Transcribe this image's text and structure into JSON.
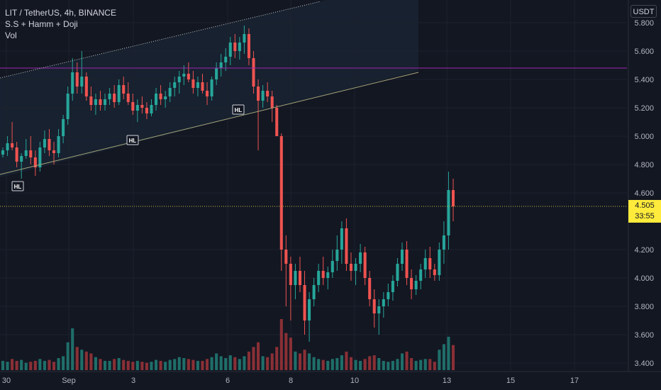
{
  "header": {
    "symbol_line": "LIT / TetherUS, 4h, BINANCE",
    "indicator_1": "S.S + Hamm + Doji",
    "indicator_2": "Vol"
  },
  "price_axis": {
    "unit": "USDT",
    "last_price": "4.505",
    "countdown": "33:55"
  },
  "annotations": [
    "HL",
    "HL",
    "HL"
  ],
  "colors": {
    "background": "#131722",
    "bull": "#26a69a",
    "bear": "#ef5350",
    "bull_volume": "#1f6f6a",
    "bear_volume": "#8a3036",
    "resistance_line": "#9c27b0",
    "trend_line": "#a5a57a",
    "last_price_tag": "#ffeb3b"
  },
  "chart_data": {
    "type": "candlestick",
    "symbol": "LIT / TetherUS",
    "interval": "4h",
    "exchange": "BINANCE",
    "ylim": [
      3.35,
      5.95
    ],
    "y_ticks": [
      "5.800",
      "5.600",
      "5.400",
      "5.200",
      "5.000",
      "4.800",
      "4.600",
      "4.200",
      "4.000",
      "3.800",
      "3.600",
      "3.400"
    ],
    "x_ticks": [
      "30",
      "Sep",
      "3",
      "6",
      "8",
      "10",
      "13",
      "15",
      "17"
    ],
    "horizontal_line": 5.48,
    "last_price": 4.505,
    "candles": [
      [
        4.87,
        4.92,
        4.85,
        4.9,
        0.1
      ],
      [
        4.9,
        5.0,
        4.86,
        4.95,
        0.09
      ],
      [
        4.95,
        5.1,
        4.9,
        4.92,
        0.12
      ],
      [
        4.92,
        4.96,
        4.78,
        4.82,
        0.1
      ],
      [
        4.82,
        4.88,
        4.7,
        4.86,
        0.11
      ],
      [
        4.86,
        4.98,
        4.84,
        4.9,
        0.08
      ],
      [
        4.9,
        5.0,
        4.8,
        4.85,
        0.09
      ],
      [
        4.85,
        4.9,
        4.72,
        4.78,
        0.1
      ],
      [
        4.78,
        4.96,
        4.75,
        4.92,
        0.12
      ],
      [
        4.92,
        5.04,
        4.88,
        4.98,
        0.1
      ],
      [
        4.98,
        5.05,
        4.86,
        4.9,
        0.11
      ],
      [
        4.9,
        4.96,
        4.8,
        4.88,
        0.09
      ],
      [
        4.88,
        5.05,
        4.85,
        5.0,
        0.13
      ],
      [
        5.0,
        5.15,
        4.95,
        5.12,
        0.15
      ],
      [
        5.12,
        5.35,
        5.08,
        5.3,
        0.3
      ],
      [
        5.3,
        5.55,
        5.25,
        5.45,
        0.45
      ],
      [
        5.45,
        5.52,
        5.3,
        5.35,
        0.25
      ],
      [
        5.35,
        5.6,
        5.3,
        5.42,
        0.22
      ],
      [
        5.42,
        5.45,
        5.25,
        5.28,
        0.2
      ],
      [
        5.28,
        5.35,
        5.18,
        5.22,
        0.18
      ],
      [
        5.22,
        5.3,
        5.15,
        5.26,
        0.14
      ],
      [
        5.26,
        5.32,
        5.18,
        5.22,
        0.12
      ],
      [
        5.22,
        5.3,
        5.18,
        5.26,
        0.1
      ],
      [
        5.26,
        5.34,
        5.22,
        5.3,
        0.1
      ],
      [
        5.3,
        5.36,
        5.2,
        5.24,
        0.12
      ],
      [
        5.24,
        5.4,
        5.22,
        5.36,
        0.13
      ],
      [
        5.36,
        5.42,
        5.26,
        5.3,
        0.11
      ],
      [
        5.3,
        5.38,
        5.22,
        5.24,
        0.1
      ],
      [
        5.24,
        5.3,
        5.15,
        5.18,
        0.09
      ],
      [
        5.18,
        5.26,
        5.1,
        5.22,
        0.1
      ],
      [
        5.22,
        5.28,
        5.16,
        5.2,
        0.09
      ],
      [
        5.2,
        5.24,
        5.12,
        5.16,
        0.08
      ],
      [
        5.16,
        5.26,
        5.14,
        5.22,
        0.09
      ],
      [
        5.22,
        5.34,
        5.18,
        5.3,
        0.11
      ],
      [
        5.3,
        5.36,
        5.22,
        5.26,
        0.1
      ],
      [
        5.26,
        5.32,
        5.2,
        5.28,
        0.09
      ],
      [
        5.28,
        5.38,
        5.24,
        5.34,
        0.11
      ],
      [
        5.34,
        5.42,
        5.28,
        5.38,
        0.12
      ],
      [
        5.38,
        5.46,
        5.3,
        5.42,
        0.14
      ],
      [
        5.42,
        5.5,
        5.36,
        5.44,
        0.13
      ],
      [
        5.44,
        5.52,
        5.38,
        5.4,
        0.12
      ],
      [
        5.4,
        5.46,
        5.3,
        5.34,
        0.11
      ],
      [
        5.34,
        5.42,
        5.28,
        5.38,
        0.1
      ],
      [
        5.38,
        5.44,
        5.3,
        5.32,
        0.1
      ],
      [
        5.32,
        5.38,
        5.22,
        5.28,
        0.12
      ],
      [
        5.28,
        5.42,
        5.25,
        5.4,
        0.14
      ],
      [
        5.4,
        5.52,
        5.36,
        5.48,
        0.18
      ],
      [
        5.48,
        5.58,
        5.42,
        5.52,
        0.15
      ],
      [
        5.52,
        5.62,
        5.46,
        5.56,
        0.13
      ],
      [
        5.56,
        5.7,
        5.5,
        5.66,
        0.16
      ],
      [
        5.66,
        5.72,
        5.55,
        5.6,
        0.14
      ],
      [
        5.6,
        5.7,
        5.54,
        5.66,
        0.12
      ],
      [
        5.66,
        5.78,
        5.58,
        5.72,
        0.15
      ],
      [
        5.72,
        5.76,
        5.5,
        5.55,
        0.2
      ],
      [
        5.55,
        5.6,
        5.3,
        5.35,
        0.25
      ],
      [
        5.35,
        5.4,
        4.9,
        5.25,
        0.3
      ],
      [
        5.25,
        5.36,
        5.2,
        5.32,
        0.15
      ],
      [
        5.32,
        5.38,
        5.24,
        5.28,
        0.14
      ],
      [
        5.28,
        5.32,
        5.1,
        5.2,
        0.18
      ],
      [
        5.2,
        5.22,
        5.0,
        5.0,
        0.25
      ],
      [
        5.0,
        5.02,
        4.05,
        4.2,
        0.55
      ],
      [
        4.2,
        4.3,
        3.8,
        4.1,
        0.4
      ],
      [
        4.1,
        4.15,
        3.7,
        3.95,
        0.35
      ],
      [
        3.95,
        4.1,
        3.85,
        4.05,
        0.2
      ],
      [
        4.05,
        4.15,
        3.9,
        3.95,
        0.18
      ],
      [
        3.95,
        4.05,
        3.6,
        3.7,
        0.22
      ],
      [
        3.7,
        3.9,
        3.55,
        3.85,
        0.18
      ],
      [
        3.85,
        4.0,
        3.8,
        3.95,
        0.14
      ],
      [
        3.95,
        4.1,
        3.9,
        4.05,
        0.12
      ],
      [
        4.05,
        4.15,
        3.95,
        4.0,
        0.11
      ],
      [
        4.0,
        4.08,
        3.92,
        4.04,
        0.1
      ],
      [
        4.04,
        4.2,
        4.0,
        4.12,
        0.12
      ],
      [
        4.12,
        4.3,
        4.05,
        4.2,
        0.13
      ],
      [
        4.2,
        4.4,
        4.1,
        4.35,
        0.16
      ],
      [
        4.35,
        4.42,
        4.05,
        4.1,
        0.2
      ],
      [
        4.1,
        4.18,
        3.98,
        4.05,
        0.14
      ],
      [
        4.05,
        4.14,
        3.95,
        4.1,
        0.11
      ],
      [
        4.1,
        4.24,
        4.04,
        4.18,
        0.1
      ],
      [
        4.18,
        4.22,
        3.95,
        4.0,
        0.12
      ],
      [
        4.0,
        4.05,
        3.8,
        3.85,
        0.15
      ],
      [
        3.85,
        3.92,
        3.65,
        3.75,
        0.16
      ],
      [
        3.75,
        3.85,
        3.6,
        3.8,
        0.13
      ],
      [
        3.8,
        3.9,
        3.72,
        3.85,
        0.1
      ],
      [
        3.85,
        3.96,
        3.8,
        3.9,
        0.09
      ],
      [
        3.9,
        4.02,
        3.84,
        3.98,
        0.1
      ],
      [
        3.98,
        4.14,
        3.94,
        4.1,
        0.12
      ],
      [
        4.1,
        4.25,
        4.05,
        4.2,
        0.18
      ],
      [
        4.2,
        4.26,
        3.95,
        4.0,
        0.2
      ],
      [
        4.0,
        4.06,
        3.85,
        3.92,
        0.13
      ],
      [
        3.92,
        4.02,
        3.88,
        3.98,
        0.1
      ],
      [
        3.98,
        4.1,
        3.92,
        4.06,
        0.11
      ],
      [
        4.06,
        4.2,
        4.0,
        4.14,
        0.12
      ],
      [
        4.14,
        4.22,
        4.0,
        4.06,
        0.12
      ],
      [
        4.06,
        4.1,
        3.98,
        4.02,
        0.09
      ],
      [
        4.02,
        4.25,
        3.98,
        4.2,
        0.22
      ],
      [
        4.2,
        4.4,
        4.1,
        4.3,
        0.28
      ],
      [
        4.3,
        4.75,
        4.2,
        4.62,
        0.36
      ],
      [
        4.62,
        4.7,
        4.4,
        4.505,
        0.27
      ]
    ],
    "volume_unit": "relative"
  }
}
